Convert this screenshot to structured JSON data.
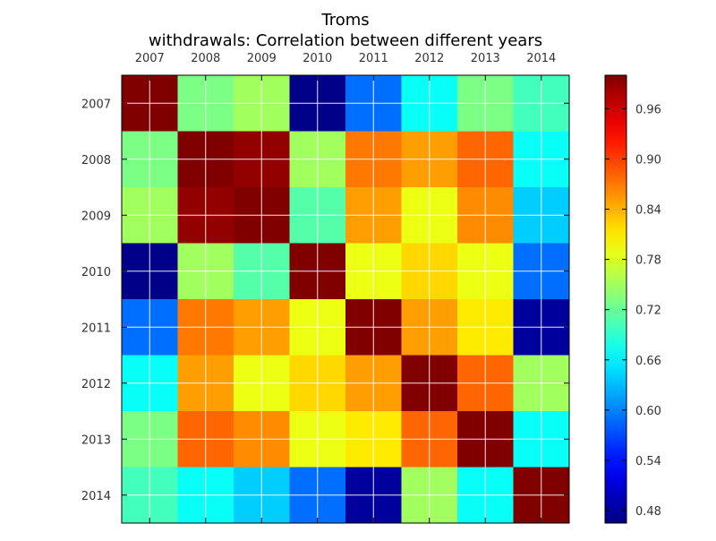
{
  "chart_data": {
    "type": "heatmap",
    "title_line1": "Troms",
    "title_line2": "withdrawals: Correlation between different years",
    "categories": [
      "2007",
      "2008",
      "2009",
      "2010",
      "2011",
      "2012",
      "2013",
      "2014"
    ],
    "values": [
      [
        1.0,
        0.73,
        0.75,
        0.47,
        0.59,
        0.67,
        0.73,
        0.7
      ],
      [
        0.73,
        1.0,
        0.99,
        0.75,
        0.87,
        0.85,
        0.88,
        0.67
      ],
      [
        0.75,
        0.99,
        1.0,
        0.71,
        0.85,
        0.79,
        0.86,
        0.64
      ],
      [
        0.47,
        0.75,
        0.71,
        1.0,
        0.79,
        0.82,
        0.79,
        0.59
      ],
      [
        0.59,
        0.87,
        0.85,
        0.79,
        1.0,
        0.85,
        0.81,
        0.48
      ],
      [
        0.67,
        0.85,
        0.79,
        0.82,
        0.85,
        1.0,
        0.88,
        0.75
      ],
      [
        0.73,
        0.88,
        0.86,
        0.79,
        0.81,
        0.88,
        1.0,
        0.67
      ],
      [
        0.7,
        0.67,
        0.64,
        0.59,
        0.48,
        0.75,
        0.67,
        1.0
      ]
    ],
    "colorscale": "jet",
    "vmin": 0.465,
    "vmax": 1.0,
    "colorbar_ticks": [
      "0.48",
      "0.54",
      "0.60",
      "0.66",
      "0.72",
      "0.78",
      "0.84",
      "0.90",
      "0.96"
    ],
    "grid": true,
    "legend": "colorbar-right"
  }
}
